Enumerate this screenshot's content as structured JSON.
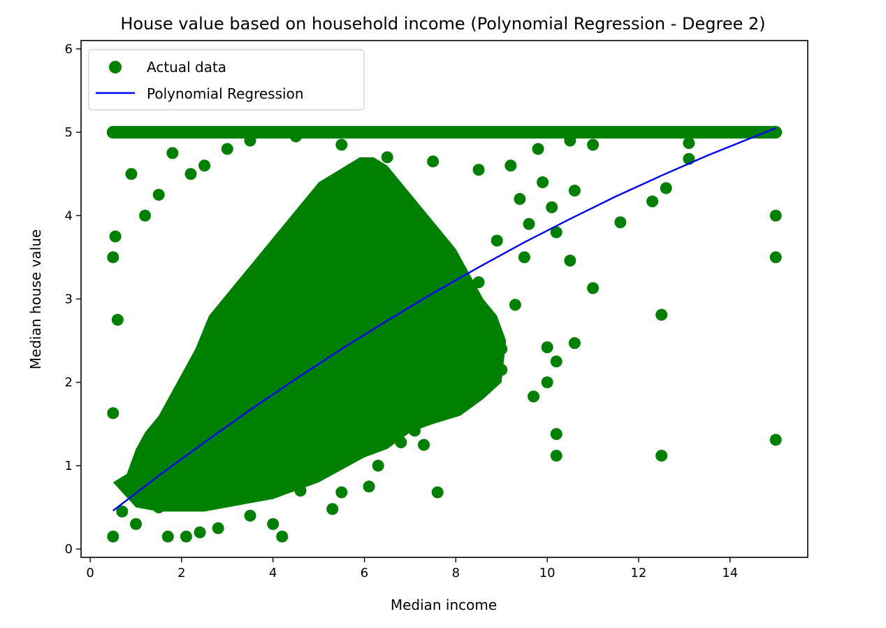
{
  "chart_data": {
    "type": "scatter",
    "title": "House value based on household income (Polynomial Regression - Degree 2)",
    "xlabel": "Median income",
    "ylabel": "Median house value",
    "xlim": [
      -0.2,
      15.7
    ],
    "ylim": [
      -0.1,
      6.1
    ],
    "xticks": [
      0,
      2,
      4,
      6,
      8,
      10,
      12,
      14
    ],
    "yticks": [
      0,
      1,
      2,
      3,
      4,
      5,
      6
    ],
    "grid": false,
    "legend_position": "top-left",
    "series": [
      {
        "name": "Actual data",
        "kind": "scatter",
        "color": "#008000",
        "points": [
          [
            0.5,
            0.15
          ],
          [
            0.7,
            0.45
          ],
          [
            1.0,
            0.3
          ],
          [
            1.2,
            0.6
          ],
          [
            1.5,
            0.5
          ],
          [
            1.7,
            0.15
          ],
          [
            2.1,
            0.15
          ],
          [
            2.4,
            0.2
          ],
          [
            2.8,
            0.25
          ],
          [
            3.5,
            0.4
          ],
          [
            4.0,
            0.3
          ],
          [
            4.2,
            0.15
          ],
          [
            4.6,
            0.7
          ],
          [
            5.3,
            0.48
          ],
          [
            5.5,
            0.68
          ],
          [
            6.1,
            0.75
          ],
          [
            6.3,
            1.0
          ],
          [
            6.8,
            1.28
          ],
          [
            7.1,
            1.42
          ],
          [
            7.3,
            1.25
          ],
          [
            7.6,
            0.68
          ],
          [
            7.7,
            1.75
          ],
          [
            7.8,
            1.95
          ],
          [
            8.0,
            2.25
          ],
          [
            8.2,
            2.5
          ],
          [
            8.4,
            1.9
          ],
          [
            8.6,
            2.25
          ],
          [
            8.8,
            2.28
          ],
          [
            9.0,
            2.15
          ],
          [
            9.0,
            2.4
          ],
          [
            9.3,
            2.93
          ],
          [
            9.5,
            3.5
          ],
          [
            9.7,
            1.83
          ],
          [
            10.0,
            2.0
          ],
          [
            10.0,
            2.42
          ],
          [
            10.2,
            1.38
          ],
          [
            10.2,
            1.12
          ],
          [
            10.2,
            2.25
          ],
          [
            10.6,
            2.47
          ],
          [
            11.0,
            3.13
          ],
          [
            11.6,
            3.92
          ],
          [
            12.5,
            2.81
          ],
          [
            12.5,
            1.12
          ],
          [
            12.3,
            4.17
          ],
          [
            12.6,
            4.33
          ],
          [
            13.1,
            4.68
          ],
          [
            13.1,
            4.87
          ],
          [
            15.0,
            1.31
          ],
          [
            15.0,
            3.5
          ],
          [
            15.0,
            4.0
          ],
          [
            0.5,
            3.5
          ],
          [
            0.55,
            3.75
          ],
          [
            0.6,
            2.75
          ],
          [
            0.5,
            1.63
          ],
          [
            0.9,
            4.5
          ],
          [
            1.2,
            4.0
          ],
          [
            1.5,
            4.25
          ],
          [
            1.8,
            4.75
          ],
          [
            2.2,
            4.5
          ],
          [
            2.5,
            4.6
          ],
          [
            3.0,
            4.8
          ],
          [
            3.5,
            4.9
          ],
          [
            4.5,
            4.95
          ],
          [
            5.5,
            4.85
          ],
          [
            6.5,
            4.7
          ],
          [
            7.5,
            4.65
          ],
          [
            8.5,
            4.55
          ],
          [
            9.2,
            4.6
          ],
          [
            9.8,
            4.8
          ],
          [
            10.5,
            4.9
          ],
          [
            11.0,
            4.85
          ],
          [
            10.6,
            4.3
          ],
          [
            10.2,
            3.8
          ],
          [
            10.5,
            3.46
          ],
          [
            10.1,
            4.1
          ],
          [
            9.6,
            3.9
          ],
          [
            9.9,
            4.4
          ],
          [
            9.4,
            4.2
          ],
          [
            8.9,
            3.7
          ],
          [
            8.5,
            3.2
          ]
        ],
        "cloud_note": ""
      },
      {
        "name": "Polynomial Regression",
        "kind": "line",
        "color": "#0000ff",
        "points": [
          [
            0.5,
            0.46
          ],
          [
            1.5,
            0.88
          ],
          [
            2.5,
            1.28
          ],
          [
            3.5,
            1.67
          ],
          [
            4.5,
            2.04
          ],
          [
            5.5,
            2.4
          ],
          [
            6.5,
            2.74
          ],
          [
            7.5,
            3.07
          ],
          [
            8.5,
            3.38
          ],
          [
            9.5,
            3.68
          ],
          [
            10.5,
            3.96
          ],
          [
            11.5,
            4.23
          ],
          [
            12.5,
            4.48
          ],
          [
            13.5,
            4.72
          ],
          [
            14.5,
            4.94
          ],
          [
            15.0,
            5.05
          ]
        ]
      }
    ]
  }
}
